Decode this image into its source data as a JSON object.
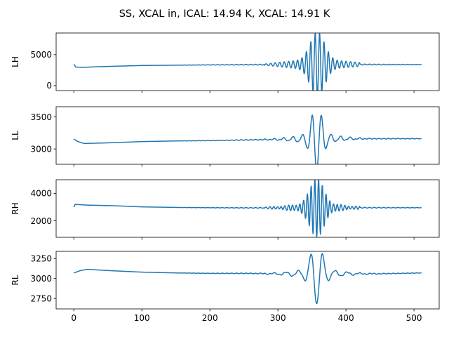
{
  "chart_data": {
    "type": "line",
    "title": "SS, XCAL in, ICAL: 14.94 K, XCAL: 14.91 K",
    "sharex": true,
    "xlim": [
      -26,
      537
    ],
    "xticks": [
      0,
      100,
      200,
      300,
      400,
      500
    ],
    "grid": false,
    "line_color": "#1f77b4",
    "panels": [
      {
        "ylabel": "LH",
        "ylim": [
          -800,
          8500
        ],
        "yticks": [
          0,
          5000
        ],
        "baseline": [
          [
            0,
            3450
          ],
          [
            3,
            3000
          ],
          [
            10,
            2950
          ],
          [
            50,
            3100
          ],
          [
            100,
            3250
          ],
          [
            150,
            3300
          ],
          [
            200,
            3350
          ],
          [
            250,
            3380
          ],
          [
            300,
            3400
          ],
          [
            350,
            3420
          ],
          [
            400,
            3430
          ],
          [
            450,
            3400
          ],
          [
            511,
            3400
          ]
        ],
        "osc": {
          "center": 358,
          "amp": 4700,
          "period": 6.5,
          "width": 15,
          "start": 280,
          "end": 420
        }
      },
      {
        "ylabel": "LL",
        "ylim": [
          2760,
          3660
        ],
        "yticks": [
          3000,
          3500
        ],
        "baseline": [
          [
            0,
            3155
          ],
          [
            5,
            3120
          ],
          [
            15,
            3085
          ],
          [
            50,
            3095
          ],
          [
            100,
            3115
          ],
          [
            150,
            3125
          ],
          [
            200,
            3130
          ],
          [
            250,
            3140
          ],
          [
            300,
            3150
          ],
          [
            350,
            3155
          ],
          [
            400,
            3160
          ],
          [
            450,
            3160
          ],
          [
            511,
            3160
          ]
        ],
        "osc": {
          "center": 357,
          "amp": 440,
          "period": 14,
          "width": 11,
          "start": 230,
          "end": 470
        }
      },
      {
        "ylabel": "RH",
        "ylim": [
          800,
          5000
        ],
        "yticks": [
          2000,
          4000
        ],
        "baseline": [
          [
            0,
            3000
          ],
          [
            2,
            3200
          ],
          [
            20,
            3150
          ],
          [
            61,
            3100
          ],
          [
            100,
            3020
          ],
          [
            150,
            2980
          ],
          [
            200,
            2960
          ],
          [
            250,
            2950
          ],
          [
            300,
            2950
          ],
          [
            350,
            2950
          ],
          [
            400,
            2960
          ],
          [
            450,
            2960
          ],
          [
            511,
            2960
          ]
        ],
        "osc": {
          "center": 357,
          "amp": 1900,
          "period": 5.5,
          "width": 14,
          "start": 280,
          "end": 420
        }
      },
      {
        "ylabel": "RL",
        "ylim": [
          2620,
          3340
        ],
        "yticks": [
          2750,
          3000,
          3250
        ],
        "baseline": [
          [
            0,
            3070
          ],
          [
            10,
            3100
          ],
          [
            20,
            3115
          ],
          [
            50,
            3100
          ],
          [
            100,
            3080
          ],
          [
            150,
            3070
          ],
          [
            200,
            3065
          ],
          [
            250,
            3065
          ],
          [
            300,
            3060
          ],
          [
            350,
            3060
          ],
          [
            400,
            3060
          ],
          [
            450,
            3060
          ],
          [
            511,
            3070
          ]
        ],
        "osc": {
          "center": 357,
          "amp": 330,
          "period": 18,
          "width": 12,
          "start": 250,
          "end": 470
        }
      }
    ]
  }
}
